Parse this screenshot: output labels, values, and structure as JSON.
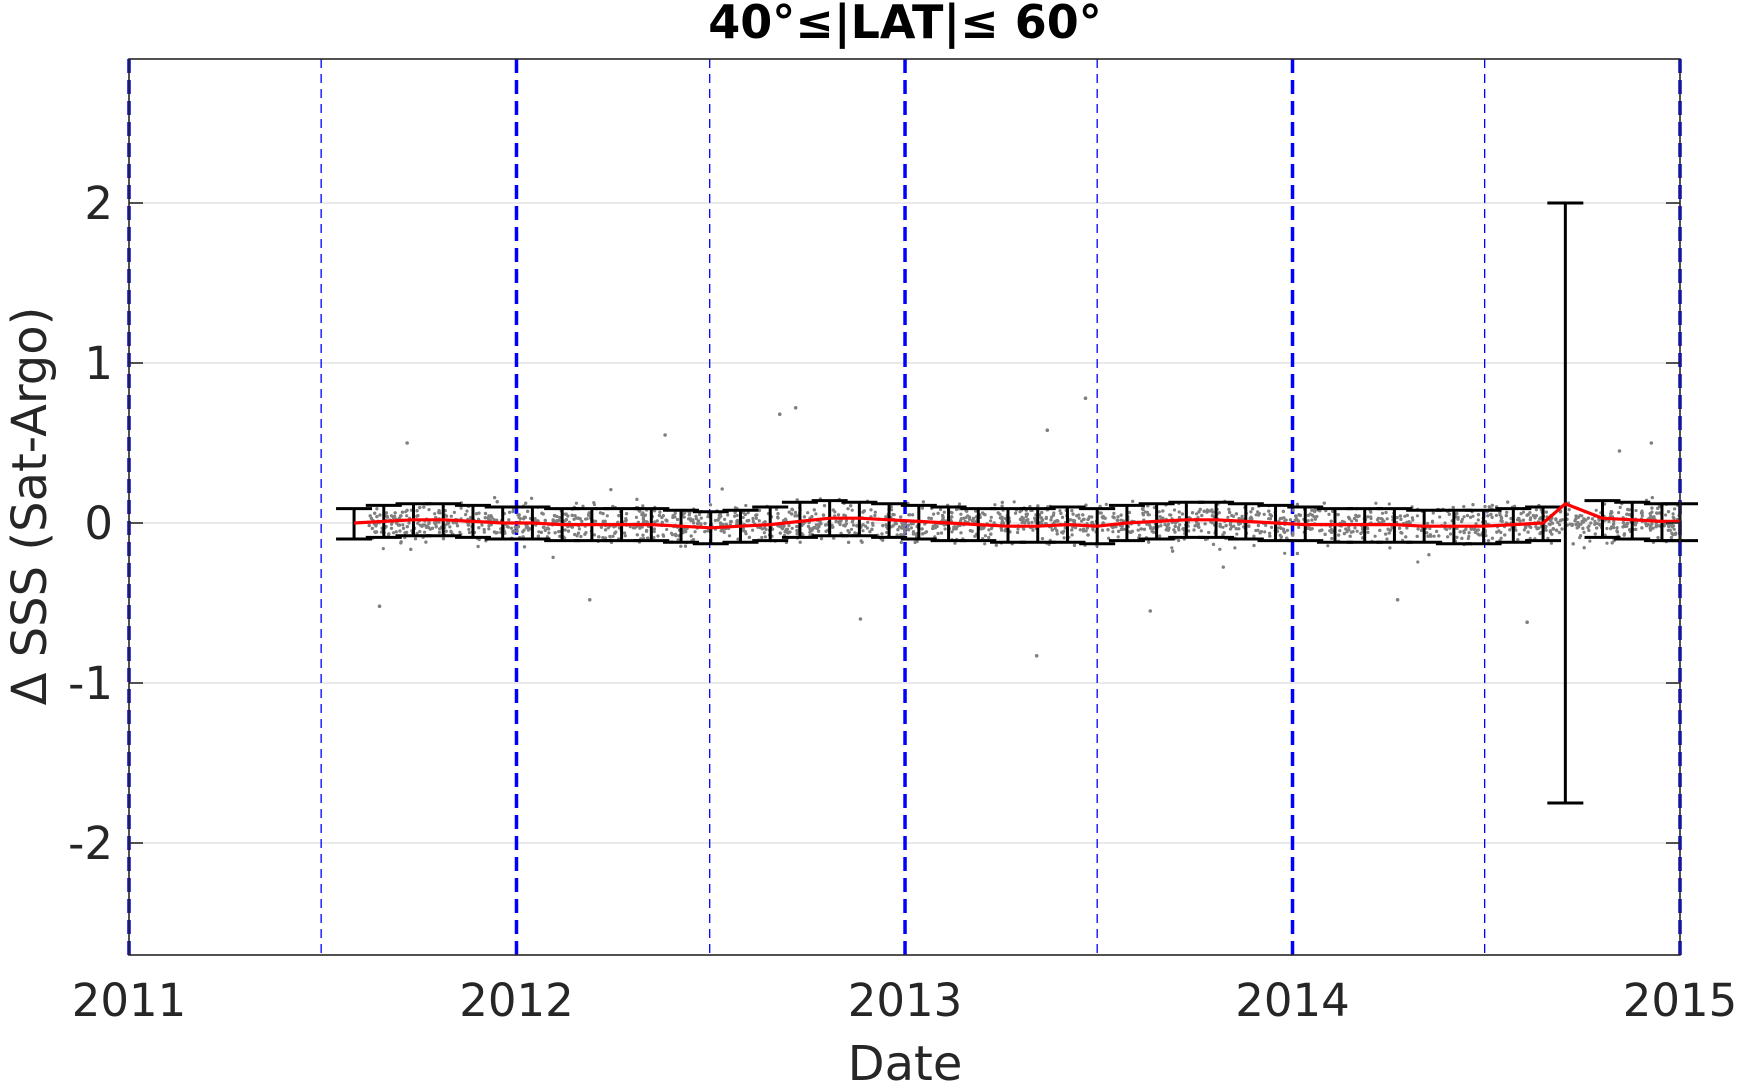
{
  "chart_data": {
    "type": "scatter",
    "title": "40°≤|LAT|≤ 60°",
    "xlabel": "Date",
    "ylabel": "Δ SSS (Sat-Argo)",
    "xlim": [
      "2011-01-01",
      "2015-01-01"
    ],
    "ylim": [
      -2.7,
      2.9
    ],
    "x_ticks": [
      "2011",
      "2012",
      "2013",
      "2014",
      "2015"
    ],
    "y_ticks": [
      -2,
      -1,
      0,
      1,
      2
    ],
    "grid": "horizontal",
    "vertical_reference_lines": {
      "year_starts": [
        "2011-01-01",
        "2012-01-01",
        "2013-01-01",
        "2014-01-01",
        "2015-01-01"
      ],
      "mid_years": [
        "2011-07-01",
        "2012-07-01",
        "2013-07-01",
        "2014-07-01"
      ],
      "color": "#0000ff"
    },
    "scatter": {
      "color": "#808080",
      "x_range": [
        "2011-08-15",
        "2015-01-01"
      ],
      "center": 0.0,
      "spread": 0.1,
      "outliers": [
        {
          "x": "2011-08-25",
          "y": -0.52
        },
        {
          "x": "2011-09-20",
          "y": 0.5
        },
        {
          "x": "2012-03-10",
          "y": -0.48
        },
        {
          "x": "2012-05-20",
          "y": 0.55
        },
        {
          "x": "2012-09-05",
          "y": 0.68
        },
        {
          "x": "2012-09-20",
          "y": 0.72
        },
        {
          "x": "2012-11-20",
          "y": -0.6
        },
        {
          "x": "2013-05-15",
          "y": 0.58
        },
        {
          "x": "2013-06-20",
          "y": 0.78
        },
        {
          "x": "2013-05-05",
          "y": -0.83
        },
        {
          "x": "2013-08-20",
          "y": -0.55
        },
        {
          "x": "2014-04-10",
          "y": -0.48
        },
        {
          "x": "2014-08-10",
          "y": -0.62
        },
        {
          "x": "2014-11-05",
          "y": 0.45
        },
        {
          "x": "2014-12-05",
          "y": 0.5
        }
      ]
    },
    "series": [
      {
        "type": "line",
        "color": "#ff0000",
        "x": [
          "2011-08-01",
          "2011-08-29",
          "2011-09-26",
          "2011-10-24",
          "2011-11-21",
          "2011-12-19",
          "2012-01-16",
          "2012-02-13",
          "2012-03-12",
          "2012-04-09",
          "2012-05-07",
          "2012-06-04",
          "2012-07-02",
          "2012-07-30",
          "2012-08-27",
          "2012-09-24",
          "2012-10-22",
          "2012-11-19",
          "2012-12-17",
          "2013-01-14",
          "2013-02-11",
          "2013-03-11",
          "2013-04-08",
          "2013-05-06",
          "2013-06-03",
          "2013-07-01",
          "2013-07-29",
          "2013-08-26",
          "2013-09-23",
          "2013-10-21",
          "2013-11-18",
          "2013-12-16",
          "2014-01-13",
          "2014-02-10",
          "2014-03-10",
          "2014-04-07",
          "2014-05-05",
          "2014-06-02",
          "2014-06-30",
          "2014-07-28",
          "2014-08-25",
          "2014-09-15",
          "2014-10-20",
          "2014-11-17",
          "2014-12-15",
          "2015-01-01"
        ],
        "y": [
          0.0,
          0.01,
          0.02,
          0.02,
          0.01,
          0.0,
          0.0,
          -0.01,
          -0.01,
          -0.01,
          -0.01,
          -0.02,
          -0.03,
          -0.02,
          -0.01,
          0.01,
          0.03,
          0.03,
          0.02,
          0.01,
          0.0,
          -0.01,
          -0.02,
          -0.02,
          -0.01,
          -0.02,
          0.0,
          0.01,
          0.02,
          0.02,
          0.01,
          0.0,
          -0.01,
          -0.01,
          -0.01,
          -0.01,
          -0.02,
          -0.02,
          -0.02,
          -0.01,
          0.0,
          0.12,
          0.03,
          0.02,
          0.01,
          0.01
        ]
      }
    ],
    "error_bars": {
      "color": "#000000",
      "x": [
        "2011-08-01",
        "2011-08-29",
        "2011-09-26",
        "2011-10-24",
        "2011-11-21",
        "2011-12-19",
        "2012-01-16",
        "2012-02-13",
        "2012-03-12",
        "2012-04-09",
        "2012-05-07",
        "2012-06-04",
        "2012-07-02",
        "2012-07-30",
        "2012-08-27",
        "2012-09-24",
        "2012-10-22",
        "2012-11-19",
        "2012-12-17",
        "2013-01-14",
        "2013-02-11",
        "2013-03-11",
        "2013-04-08",
        "2013-05-06",
        "2013-06-03",
        "2013-07-01",
        "2013-07-29",
        "2013-08-26",
        "2013-09-23",
        "2013-10-21",
        "2013-11-18",
        "2013-12-16",
        "2014-01-13",
        "2014-02-10",
        "2014-03-10",
        "2014-04-07",
        "2014-05-05",
        "2014-06-02",
        "2014-06-30",
        "2014-07-28",
        "2014-08-25",
        "2014-09-15",
        "2014-10-20",
        "2014-11-17",
        "2014-12-15",
        "2015-01-01"
      ],
      "upper": [
        0.09,
        0.11,
        0.12,
        0.12,
        0.11,
        0.1,
        0.1,
        0.09,
        0.09,
        0.09,
        0.09,
        0.08,
        0.07,
        0.08,
        0.1,
        0.13,
        0.14,
        0.13,
        0.12,
        0.11,
        0.1,
        0.09,
        0.09,
        0.09,
        0.1,
        0.09,
        0.11,
        0.12,
        0.13,
        0.13,
        0.12,
        0.11,
        0.1,
        0.09,
        0.09,
        0.09,
        0.08,
        0.08,
        0.08,
        0.09,
        0.1,
        2.0,
        0.14,
        0.13,
        0.12,
        0.12
      ],
      "lower": [
        -0.1,
        -0.09,
        -0.08,
        -0.08,
        -0.09,
        -0.1,
        -0.1,
        -0.11,
        -0.11,
        -0.11,
        -0.11,
        -0.12,
        -0.13,
        -0.12,
        -0.11,
        -0.09,
        -0.08,
        -0.08,
        -0.09,
        -0.1,
        -0.11,
        -0.11,
        -0.12,
        -0.12,
        -0.12,
        -0.13,
        -0.11,
        -0.1,
        -0.09,
        -0.09,
        -0.1,
        -0.11,
        -0.11,
        -0.12,
        -0.12,
        -0.12,
        -0.12,
        -0.13,
        -0.13,
        -0.12,
        -0.11,
        -1.75,
        -0.09,
        -0.1,
        -0.11,
        -0.11
      ]
    }
  }
}
